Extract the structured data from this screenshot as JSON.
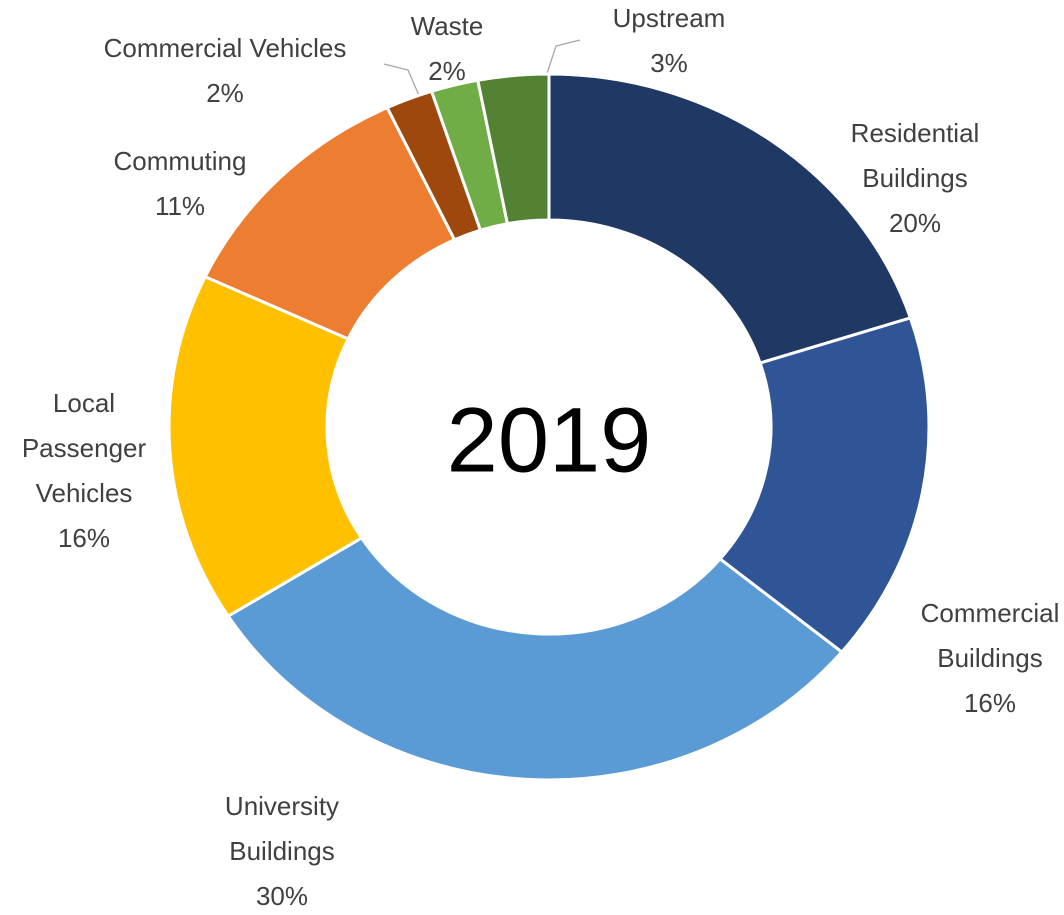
{
  "chart_data": {
    "type": "donut",
    "annotation": "2019",
    "categories": [
      "Residential\nBuildings",
      "Commercial\nBuildings",
      "University\nBuildings",
      "Local\nPassenger\nVehicles",
      "Commuting",
      "Commercial Vehicles",
      "Waste",
      "Upstream"
    ],
    "values": [
      20,
      16,
      30,
      16,
      11,
      2,
      2,
      3
    ],
    "value_labels": [
      "20%",
      "16%",
      "30%",
      "16%",
      "11%",
      "2%",
      "2%",
      "3%"
    ],
    "colors": [
      "#203864",
      "#2f5597",
      "#5b9bd5",
      "#ffc000",
      "#ed7d31",
      "#9e480e",
      "#70ad47",
      "#548235"
    ]
  }
}
